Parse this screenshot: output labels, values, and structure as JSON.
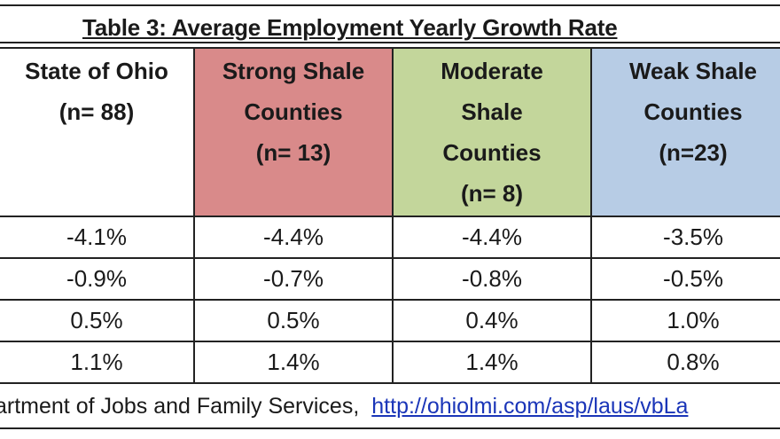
{
  "table": {
    "title": "Table 3: Average Employment Yearly Growth Rate",
    "columns": [
      {
        "lines": [
          "State of Ohio",
          "(n= 88)"
        ]
      },
      {
        "lines": [
          "Strong Shale",
          "Counties",
          "(n= 13)"
        ],
        "color": "#d98a8a"
      },
      {
        "lines": [
          "Moderate",
          "Shale",
          "Counties",
          "(n= 8)"
        ],
        "color": "#c3d69b"
      },
      {
        "lines": [
          "Weak Shale",
          "Counties",
          "(n=23)"
        ],
        "color": "#b7cce5"
      }
    ],
    "rows": [
      [
        "-4.1%",
        "-4.4%",
        "-4.4%",
        "-3.5%"
      ],
      [
        "-0.9%",
        "-0.7%",
        "-0.8%",
        "-0.5%"
      ],
      [
        "0.5%",
        "0.5%",
        "0.4%",
        "1.0%"
      ],
      [
        "1.1%",
        "1.4%",
        "1.4%",
        "0.8%"
      ]
    ]
  },
  "source": {
    "text": "artment of Jobs and Family Services,",
    "link": "http://ohiolmi.com/asp/laus/vbLa"
  }
}
